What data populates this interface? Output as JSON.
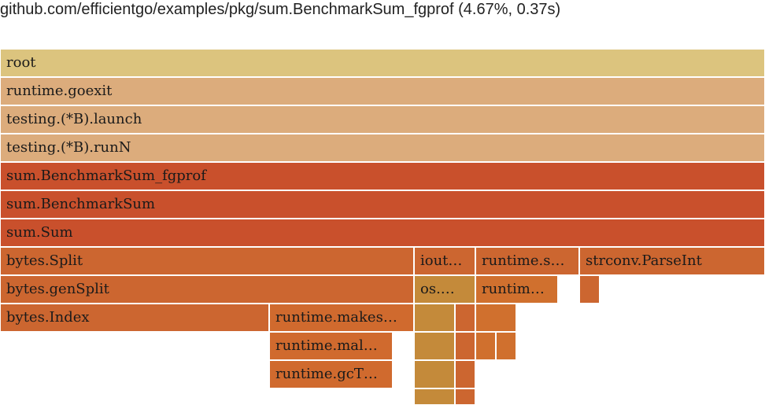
{
  "header": {
    "title": "github.com/efficientgo/examples/pkg/sum.BenchmarkSum_fgprof (4.67%, 0.37s)"
  },
  "colors": {
    "root": "#dcc47e",
    "go_runtime_top": "#dcac7c",
    "hot": "#c9502c",
    "warm": "#cc6630",
    "io": "#c48a3a",
    "light": "#d4763a"
  },
  "frames": [
    {
      "label": "root",
      "color": "#dcc47e"
    },
    {
      "label": "runtime.goexit",
      "color": "#dcac7c"
    },
    {
      "label": "testing.(*B).launch",
      "color": "#dcac7c"
    },
    {
      "label": "testing.(*B).runN",
      "color": "#dcac7c"
    },
    {
      "label": "sum.BenchmarkSum_fgprof",
      "color": "#c9502c"
    },
    {
      "label": "sum.BenchmarkSum",
      "color": "#c9502c"
    },
    {
      "label": "sum.Sum",
      "color": "#c9502c"
    },
    {
      "label": "bytes.Split",
      "color": "#cc6630"
    },
    {
      "label": "iout…",
      "color": "#cc6630"
    },
    {
      "label": "runtime.s…",
      "color": "#cc6630"
    },
    {
      "label": "strconv.ParseInt",
      "color": "#cc6630"
    },
    {
      "label": "bytes.genSplit",
      "color": "#cc6630"
    },
    {
      "label": "os.…",
      "color": "#c48a3a"
    },
    {
      "label": "runtim…",
      "color": "#d0702e"
    },
    {
      "label": "",
      "color": "#cc6630"
    },
    {
      "label": "bytes.Index",
      "color": "#cc6630"
    },
    {
      "label": "runtime.makes…",
      "color": "#d06a2e"
    },
    {
      "label": "",
      "color": "#c48a3a"
    },
    {
      "label": "",
      "color": "#cc6630"
    },
    {
      "label": "",
      "color": "#d0702e"
    },
    {
      "label": "runtime.mal…",
      "color": "#d06a2e"
    },
    {
      "label": "",
      "color": "#c48a3a"
    },
    {
      "label": "",
      "color": "#cc6630"
    },
    {
      "label": "",
      "color": "#d0702e"
    },
    {
      "label": "",
      "color": "#d0702e"
    },
    {
      "label": "runtime.gcT…",
      "color": "#d06a2e"
    },
    {
      "label": "",
      "color": "#c48a3a"
    },
    {
      "label": "",
      "color": "#cc6630"
    },
    {
      "label": "",
      "color": "#c48a3a"
    },
    {
      "label": "",
      "color": "#cc6630"
    }
  ]
}
